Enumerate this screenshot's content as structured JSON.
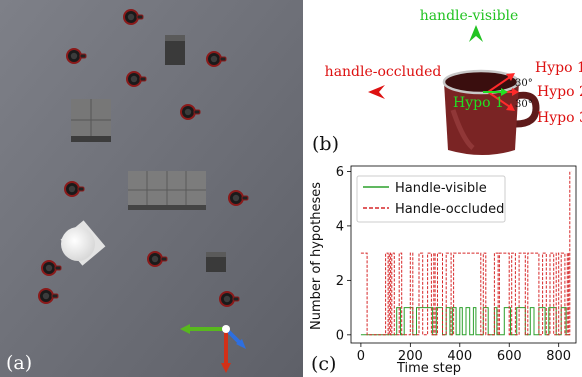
{
  "panel_a": {
    "label": "(a)"
  },
  "panel_b": {
    "label": "(b)",
    "handle_visible": "handle-visible",
    "handle_occluded": "handle-occluded",
    "hypo_center": "Hypo 1",
    "hypo_labels": [
      "Hypo 1",
      "Hypo 2",
      "Hypo 3"
    ],
    "angle_top": "30°",
    "angle_bottom": "30°",
    "colors": {
      "visible": "#22c322",
      "occluded": "#dd1111",
      "mug": "#7a2424"
    }
  },
  "panel_c": {
    "label": "(c)"
  },
  "chart_data": {
    "type": "line",
    "xlabel": "Time step",
    "ylabel": "Number of hypotheses",
    "xlim": [
      -40,
      870
    ],
    "ylim": [
      -0.3,
      6.2
    ],
    "xticks": [
      0,
      200,
      400,
      600,
      800
    ],
    "yticks": [
      0,
      2,
      4,
      6
    ],
    "legend_position": "top-left",
    "series": [
      {
        "name": "Handle-visible",
        "color": "#2ca02c",
        "style": "solid",
        "x": [
          0,
          145,
          145,
          160,
          160,
          175,
          175,
          210,
          210,
          225,
          225,
          290,
          290,
          305,
          305,
          330,
          330,
          345,
          345,
          360,
          360,
          370,
          370,
          385,
          385,
          400,
          400,
          410,
          410,
          425,
          425,
          440,
          440,
          455,
          455,
          465,
          465,
          495,
          495,
          515,
          515,
          540,
          540,
          550,
          550,
          580,
          580,
          605,
          605,
          630,
          630,
          665,
          665,
          685,
          685,
          700,
          700,
          720,
          720,
          745,
          745,
          760,
          760,
          790,
          790,
          810,
          810,
          830,
          830,
          845
        ],
        "y": [
          0,
          0,
          1,
          1,
          0,
          0,
          1,
          1,
          0,
          0,
          1,
          1,
          0,
          0,
          1,
          1,
          0,
          0,
          1,
          1,
          0,
          0,
          1,
          1,
          0,
          0,
          1,
          1,
          0,
          0,
          1,
          1,
          0,
          0,
          1,
          1,
          0,
          0,
          1,
          1,
          0,
          0,
          1,
          1,
          0,
          0,
          1,
          1,
          0,
          0,
          1,
          1,
          0,
          0,
          1,
          1,
          0,
          0,
          1,
          1,
          0,
          0,
          1,
          1,
          0,
          0,
          1,
          1,
          0,
          0
        ]
      },
      {
        "name": "Handle-occluded",
        "color": "#d62728",
        "style": "dashed",
        "x": [
          0,
          0,
          25,
          25,
          30,
          30,
          100,
          100,
          110,
          110,
          115,
          115,
          120,
          120,
          125,
          125,
          135,
          135,
          155,
          155,
          165,
          165,
          200,
          200,
          210,
          210,
          235,
          235,
          250,
          250,
          270,
          270,
          285,
          285,
          295,
          295,
          300,
          300,
          310,
          310,
          330,
          330,
          345,
          345,
          365,
          365,
          375,
          375,
          485,
          485,
          495,
          495,
          505,
          505,
          540,
          540,
          555,
          555,
          560,
          560,
          600,
          600,
          610,
          610,
          625,
          625,
          640,
          640,
          665,
          665,
          675,
          675,
          720,
          720,
          735,
          735,
          750,
          750,
          765,
          765,
          780,
          780,
          790,
          790,
          800,
          800,
          810,
          810,
          825,
          825,
          835,
          835,
          840,
          840,
          845,
          845,
          850
        ],
        "y": [
          3,
          3,
          3,
          0,
          0,
          0,
          0,
          3,
          3,
          0,
          0,
          3,
          3,
          0,
          0,
          3,
          3,
          0,
          0,
          3,
          3,
          0,
          0,
          3,
          3,
          0,
          0,
          3,
          3,
          0,
          0,
          3,
          3,
          0,
          0,
          3,
          3,
          0,
          0,
          3,
          3,
          0,
          0,
          3,
          3,
          0,
          0,
          3,
          3,
          0,
          0,
          3,
          3,
          0,
          0,
          3,
          3,
          0,
          0,
          3,
          3,
          0,
          0,
          3,
          3,
          0,
          0,
          3,
          3,
          0,
          0,
          3,
          3,
          0,
          0,
          3,
          3,
          0,
          0,
          3,
          3,
          0,
          0,
          3,
          3,
          0,
          0,
          3,
          3,
          0,
          0,
          3,
          3,
          0,
          0,
          6,
          6
        ]
      }
    ]
  }
}
